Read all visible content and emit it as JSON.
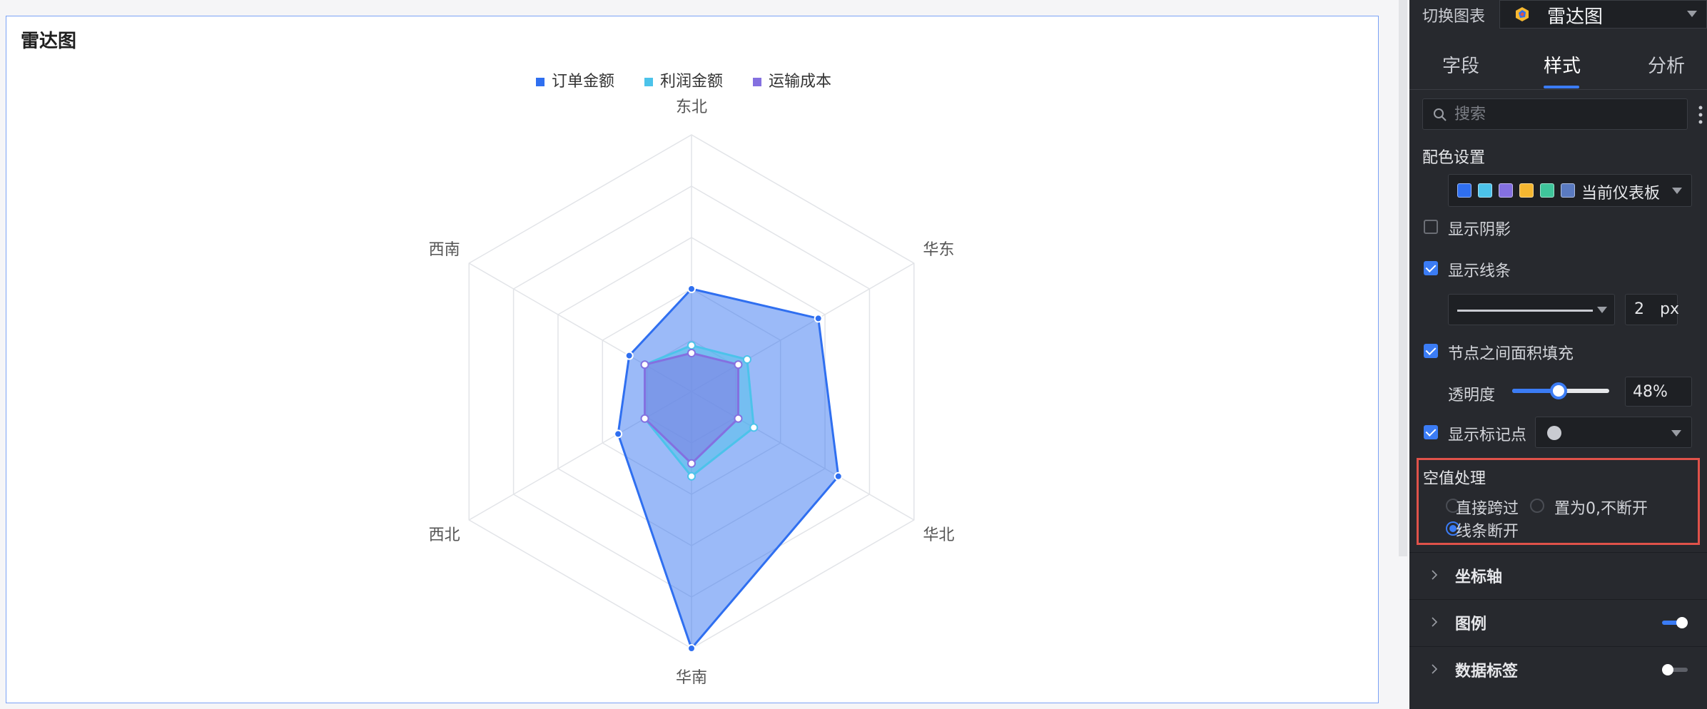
{
  "chart_data": {
    "type": "radar",
    "title": "雷达图",
    "axes": [
      "东北",
      "华东",
      "华北",
      "华南",
      "西北",
      "西南"
    ],
    "max": 10,
    "rings": 5,
    "series": [
      {
        "name": "订单金额",
        "color": "#2f6ff0",
        "values": [
          4.0,
          5.7,
          6.6,
          10.0,
          3.3,
          2.8
        ]
      },
      {
        "name": "利润金额",
        "color": "#4cc3ea",
        "values": [
          1.8,
          2.5,
          2.8,
          3.3,
          2.1,
          2.1
        ]
      },
      {
        "name": "运输成本",
        "color": "#8470e0",
        "values": [
          1.5,
          2.1,
          2.1,
          2.8,
          2.1,
          2.1
        ]
      }
    ],
    "fill_opacity": 0.48,
    "legend_position": "top-center"
  },
  "panel": {
    "switch_label": "切换图表",
    "chart_type": "雷达图",
    "tabs": [
      "字段",
      "样式",
      "分析"
    ],
    "active_tab": "样式",
    "search_placeholder": "搜索",
    "color_section": "配色设置",
    "palette_colors": [
      "#2f6ff0",
      "#4cc3ea",
      "#8470e0",
      "#f5b731",
      "#3fc59b",
      "#5a7ac0"
    ],
    "palette_name": "当前仪表板",
    "show_shadow": "显示阴影",
    "show_line": "显示线条",
    "line_width": "2",
    "line_width_unit": "px",
    "area_fill": "节点之间面积填充",
    "opacity_label": "透明度",
    "opacity_value": "48%",
    "opacity_level": 0.48,
    "show_markers": "显示标记点",
    "null_title": "空值处理",
    "null_options": [
      "直接跨过",
      "置为0,不断开",
      "线条断开"
    ],
    "null_selected": "线条断开",
    "sections": [
      "坐标轴",
      "图例",
      "数据标签"
    ],
    "legend_toggle_on": true,
    "data_label_toggle_on": false
  }
}
